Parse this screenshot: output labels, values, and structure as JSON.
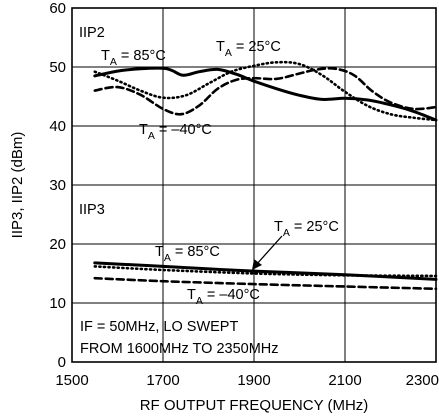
{
  "chart_data": {
    "type": "line",
    "xlabel": "RF OUTPUT FREQUENCY (MHz)",
    "ylabel": "IIP3, IIP2 (dBm)",
    "xlim": [
      1500,
      2300
    ],
    "ylim": [
      0,
      60
    ],
    "x_ticks": [
      "1500",
      "1700",
      "1900",
      "2100",
      "2300"
    ],
    "y_ticks": [
      "0",
      "10",
      "20",
      "30",
      "40",
      "50",
      "60"
    ],
    "grid": true,
    "legend": "none (curves labeled directly)",
    "series": [
      {
        "name": "IIP2, TA = 85°C",
        "style": "solid",
        "x": [
          1550,
          1600,
          1650,
          1700,
          1720,
          1745,
          1780,
          1820,
          1860,
          1900,
          1950,
          2000,
          2050,
          2100,
          2150,
          2200,
          2250,
          2300
        ],
        "y": [
          48.5,
          49.3,
          49.7,
          49.8,
          49.4,
          48.6,
          49.2,
          49.6,
          48.8,
          47.6,
          46.3,
          45.2,
          44.5,
          44.7,
          44.4,
          43.6,
          42.5,
          41.0
        ]
      },
      {
        "name": "IIP2, TA = 25°C",
        "style": "dotted",
        "x": [
          1550,
          1600,
          1650,
          1700,
          1750,
          1800,
          1850,
          1900,
          1950,
          2000,
          2050,
          2100,
          2150,
          2200,
          2250,
          2300
        ],
        "y": [
          49.2,
          47.7,
          46.0,
          44.8,
          45.2,
          47.2,
          49.2,
          50.2,
          50.8,
          50.5,
          48.6,
          45.8,
          43.4,
          42.0,
          41.4,
          41.0
        ]
      },
      {
        "name": "IIP2, TA = -40°C",
        "style": "dashed",
        "x": [
          1550,
          1600,
          1650,
          1700,
          1740,
          1780,
          1820,
          1860,
          1900,
          1950,
          2000,
          2040,
          2080,
          2120,
          2160,
          2200,
          2250,
          2300
        ],
        "y": [
          46.0,
          46.6,
          45.3,
          42.9,
          42.0,
          43.5,
          46.3,
          47.8,
          48.1,
          48.0,
          48.9,
          49.6,
          49.7,
          48.6,
          45.9,
          44.0,
          42.9,
          43.2
        ]
      },
      {
        "name": "IIP3, TA = 85°C",
        "style": "solid",
        "x": [
          1550,
          1700,
          1900,
          2100,
          2300
        ],
        "y": [
          16.8,
          16.2,
          15.4,
          14.8,
          14.0
        ]
      },
      {
        "name": "IIP3, TA = 25°C",
        "style": "dotted",
        "x": [
          1550,
          1700,
          1900,
          2100,
          2300
        ],
        "y": [
          16.2,
          15.6,
          15.0,
          14.7,
          14.6
        ]
      },
      {
        "name": "IIP3, TA = -40°C",
        "style": "dashed",
        "x": [
          1550,
          1700,
          1900,
          2100,
          2300
        ],
        "y": [
          14.2,
          13.7,
          13.2,
          12.8,
          12.4
        ]
      }
    ],
    "annotations": {
      "iip2_label": "IIP2",
      "iip3_label": "IIP3",
      "iip2_85": {
        "main": "T",
        "sub": "A",
        "rest": " = 85°C"
      },
      "iip2_25": {
        "main": "T",
        "sub": "A",
        "rest": " = 25°C"
      },
      "iip2_m40": {
        "main": "T",
        "sub": "A",
        "rest": " = –40°C"
      },
      "iip3_85": {
        "main": "T",
        "sub": "A",
        "rest": " = 85°C"
      },
      "iip3_25": {
        "main": "T",
        "sub": "A",
        "rest": " = 25°C"
      },
      "iip3_m40": {
        "main": "T",
        "sub": "A",
        "rest": " = –40°C"
      },
      "note_line1": "IF = 50MHz, LO SWEPT",
      "note_line2": "FROM 1600MHz TO 2350MHz"
    }
  }
}
